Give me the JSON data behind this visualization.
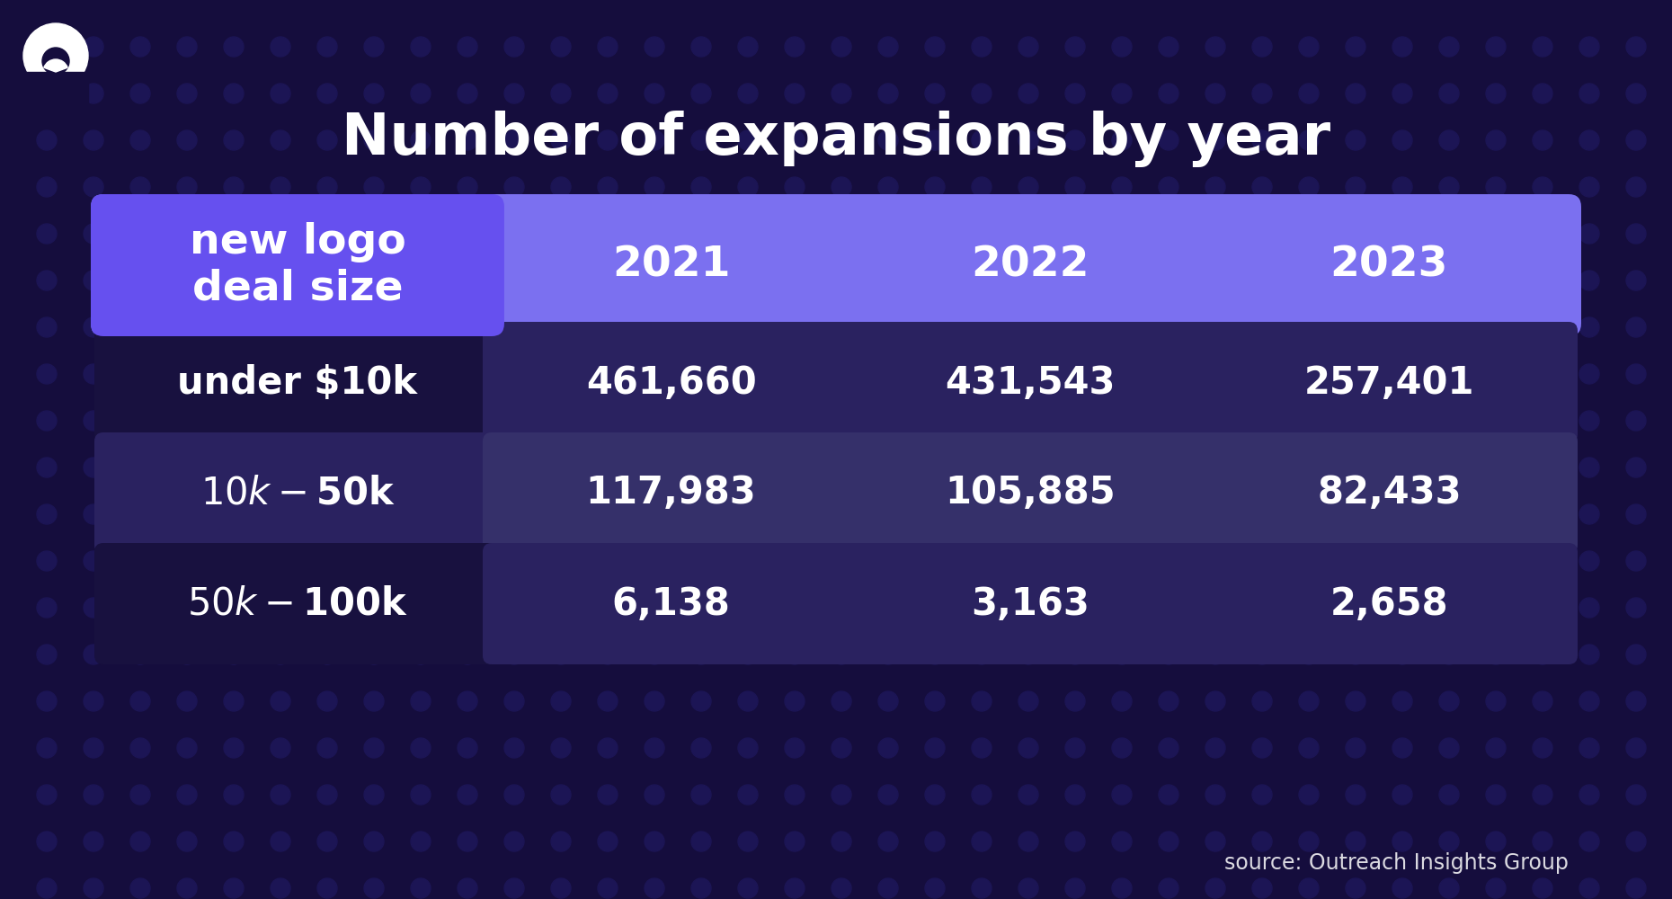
{
  "title": "Number of expansions by year",
  "bg_color": "#150d3d",
  "dot_color": "#1c1555",
  "header_label_color": "#6650ef",
  "header_2021_color": "#7b70f0",
  "header_2022_color": "#8880f2",
  "header_2023_color": "#9b92f3",
  "row1_label_bg": "#18113f",
  "row2_label_bg": "#2a2260",
  "row3_label_bg": "#18113f",
  "row1_data_bg": "#2a2260",
  "row2_data_bg": "#35306a",
  "row3_data_bg": "#2a2260",
  "text_color": "#ffffff",
  "source_text": "source: Outreach Insights Group",
  "col_header": [
    "new logo\ndeal size",
    "2021",
    "2022",
    "2023"
  ],
  "rows": [
    {
      "label": "under $10k",
      "values": [
        "461,660",
        "431,543",
        "257,401"
      ]
    },
    {
      "label": "$10k - $50k",
      "values": [
        "117,983",
        "105,885",
        "82,433"
      ]
    },
    {
      "label": "$50k - $100k",
      "values": [
        "6,138",
        "3,163",
        "2,658"
      ]
    }
  ]
}
